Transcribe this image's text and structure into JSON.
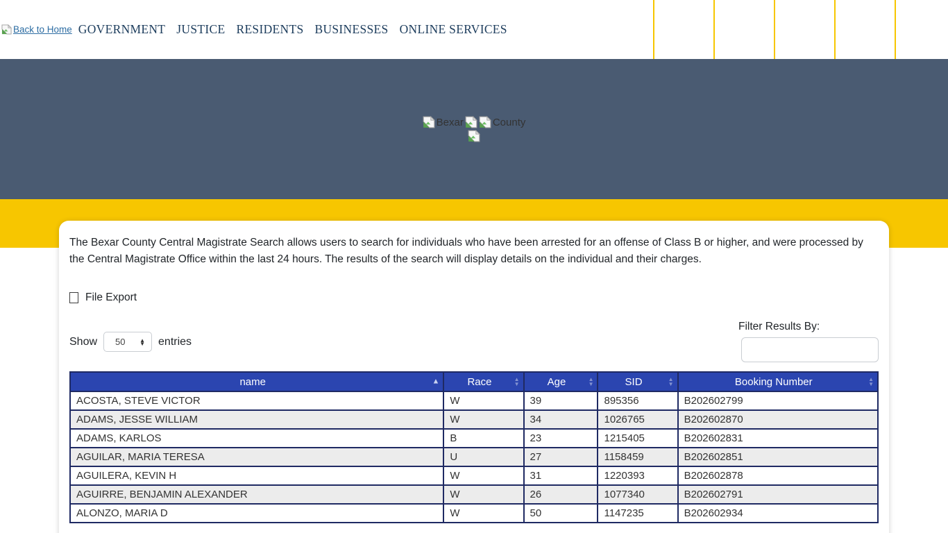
{
  "colors": {
    "accent_yellow": "#F7C600",
    "hero_slate": "#4A5B72",
    "table_header_blue": "#2B45B0",
    "table_border_navy": "#1F2A63",
    "link_blue": "#2D6DA3"
  },
  "topbar": {
    "back_link_label": "Back to Home",
    "nav": [
      {
        "label": "GOVERNMENT"
      },
      {
        "label": "JUSTICE"
      },
      {
        "label": "RESIDENTS"
      },
      {
        "label": "BUSINESSES"
      },
      {
        "label": "ONLINE SERVICES"
      }
    ]
  },
  "hero": {
    "bexar_alt": "Bexar",
    "county_alt": "County"
  },
  "main": {
    "intro": "The Bexar County Central Magistrate Search allows users to search for individuals who have been arrested for an offense of Class B or higher, and were processed by the Central Magistrate Office within the last 24 hours. The results of the search will display details on the individual and their charges.",
    "file_export_label": "File Export",
    "show_label": "Show",
    "show_value": "50",
    "entries_label": "entries",
    "filter_label": "Filter Results By:",
    "filter_value": "",
    "table": {
      "columns": [
        {
          "label": "name",
          "sort": "asc"
        },
        {
          "label": "Race",
          "sort": "none"
        },
        {
          "label": "Age",
          "sort": "none"
        },
        {
          "label": "SID",
          "sort": "none"
        },
        {
          "label": "Booking Number",
          "sort": "none"
        }
      ],
      "rows": [
        {
          "name": "ACOSTA, STEVE VICTOR",
          "race": "W",
          "age": "39",
          "sid": "895356",
          "booking": "B202602799"
        },
        {
          "name": "ADAMS, JESSE WILLIAM",
          "race": "W",
          "age": "34",
          "sid": "1026765",
          "booking": "B202602870"
        },
        {
          "name": "ADAMS, KARLOS",
          "race": "B",
          "age": "23",
          "sid": "1215405",
          "booking": "B202602831"
        },
        {
          "name": "AGUILAR, MARIA TERESA",
          "race": "U",
          "age": "27",
          "sid": "1158459",
          "booking": "B202602851"
        },
        {
          "name": "AGUILERA, KEVIN H",
          "race": "W",
          "age": "31",
          "sid": "1220393",
          "booking": "B202602878"
        },
        {
          "name": "AGUIRRE, BENJAMIN ALEXANDER",
          "race": "W",
          "age": "26",
          "sid": "1077340",
          "booking": "B202602791"
        },
        {
          "name": "ALONZO, MARIA D",
          "race": "W",
          "age": "50",
          "sid": "1147235",
          "booking": "B202602934"
        }
      ]
    }
  }
}
